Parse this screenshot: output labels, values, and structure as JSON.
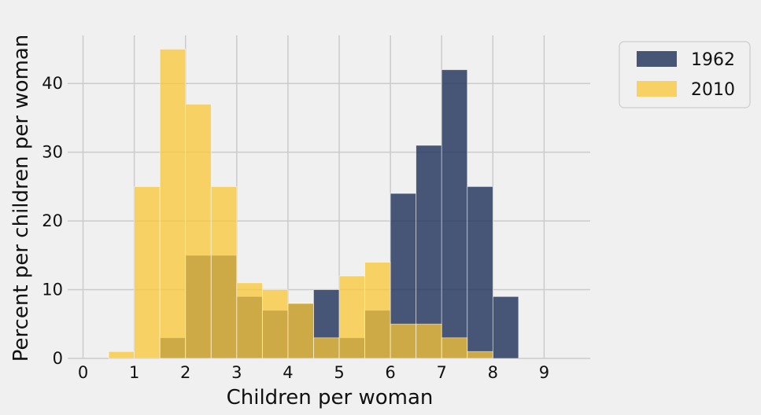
{
  "chart_data": {
    "type": "bar",
    "subtype": "overlaid-histogram",
    "xlabel": "Children per woman",
    "ylabel": "Percent per children per woman",
    "xlim": [
      -0.3,
      9.9
    ],
    "ylim": [
      0,
      47
    ],
    "xticks": [
      0,
      1,
      2,
      3,
      4,
      5,
      6,
      7,
      8,
      9
    ],
    "yticks": [
      0,
      10,
      20,
      30,
      40
    ],
    "grid": true,
    "legend_position": "outside-top-right",
    "bin_edges": [
      0.5,
      1.0,
      1.5,
      2.0,
      2.5,
      3.0,
      3.5,
      4.0,
      4.5,
      5.0,
      5.5,
      6.0,
      6.5,
      7.0,
      7.5,
      8.0,
      8.5
    ],
    "series": [
      {
        "name": "1962",
        "color": "#1d3057",
        "opacity": 0.8,
        "values": [
          0,
          0,
          3,
          15,
          15,
          9,
          7,
          8,
          10,
          3,
          7,
          24,
          31,
          42,
          25,
          9,
          2
        ]
      },
      {
        "name": "2010",
        "color": "#fbc737",
        "opacity": 0.75,
        "values": [
          1,
          25,
          45,
          37,
          25,
          11,
          10,
          8,
          3,
          12,
          14,
          5,
          5,
          3,
          1,
          0,
          0
        ]
      }
    ]
  }
}
